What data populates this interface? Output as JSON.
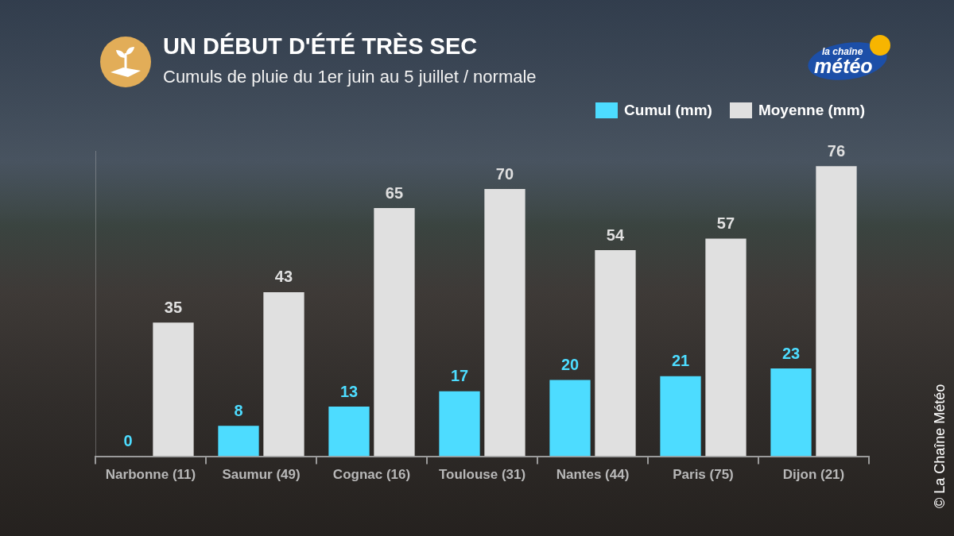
{
  "chart_data": {
    "type": "bar",
    "title": "UN DÉBUT D'ÉTÉ TRÈS SEC",
    "subtitle": "Cumuls de pluie du 1er juin au 5 juillet / normale",
    "categories": [
      "Narbonne (11)",
      "Saumur (49)",
      "Cognac (16)",
      "Toulouse (31)",
      "Nantes (44)",
      "Paris (75)",
      "Dijon (21)"
    ],
    "series": [
      {
        "name": "Cumul (mm)",
        "color": "#4ddcff",
        "values": [
          0,
          8,
          13,
          17,
          20,
          21,
          23
        ]
      },
      {
        "name": "Moyenne (mm)",
        "color": "#e0e0e0",
        "values": [
          35,
          43,
          65,
          70,
          54,
          57,
          76
        ]
      }
    ],
    "ylim": [
      0,
      80
    ],
    "grid": false,
    "legend": "top-right",
    "data_labels": true,
    "tick_labels": "x"
  },
  "logo": [
    "la chaîne",
    "météo"
  ],
  "copyright": "© La Chaîne Météo"
}
